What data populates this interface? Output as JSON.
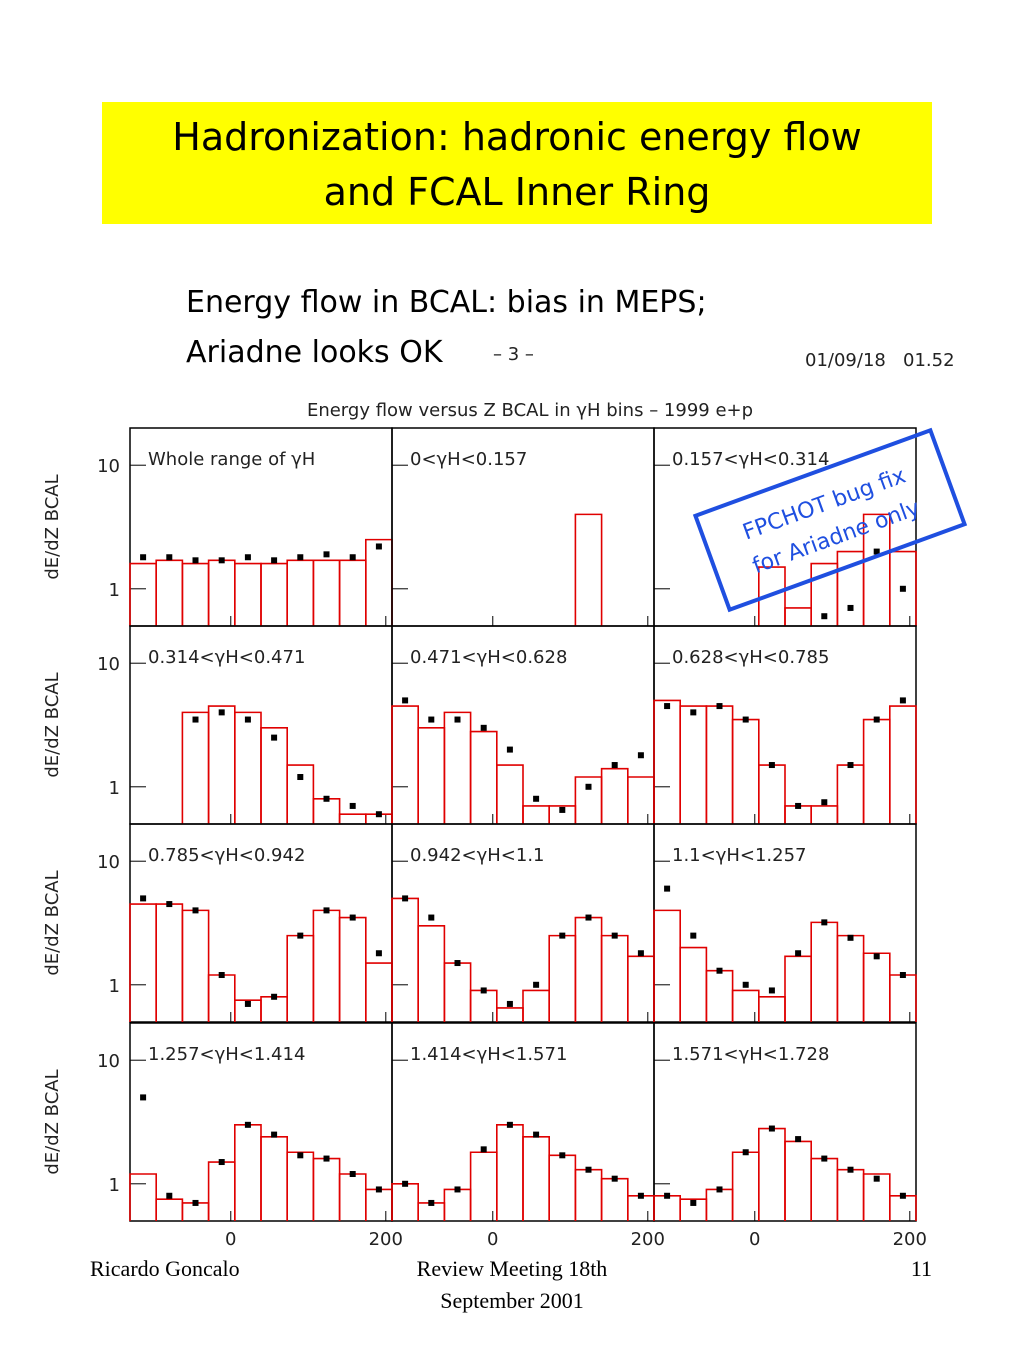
{
  "slide": {
    "title_lines": [
      "Hadronization: hadronic energy flow",
      "and FCAL Inner Ring"
    ],
    "subtitle_lines": [
      "Energy flow in BCAL: bias in MEPS;",
      "Ariadne looks OK"
    ],
    "page_stamp": "– 3 –",
    "date_stamp": "01/09/18   01.52",
    "annotation_lines": [
      "FPCHOT bug fix",
      "for Ariadne only"
    ],
    "footer_left": "Ricardo Goncalo",
    "footer_center_lines": [
      "Review Meeting 18th",
      "September 2001"
    ],
    "footer_right": "11"
  },
  "chart_data": {
    "type": "histogram",
    "title": "Energy flow versus Z BCAL in γH bins – 1999 e+p",
    "ylabel": "dE/dZ BCAL",
    "log_y": true,
    "mc_color": "#e00000",
    "data_color": "#000000",
    "xlim": [
      -130,
      208
    ],
    "ylim": [
      0.5,
      20
    ],
    "xticks": [
      0,
      200
    ],
    "yticks": [
      1,
      10
    ],
    "bins": [
      -130,
      -96.2,
      -62.4,
      -28.6,
      5.2,
      39,
      72.8,
      106.6,
      140.4,
      174.2,
      208
    ],
    "panels": [
      {
        "label": "Whole range of γH",
        "mc_values": [
          1.6,
          1.7,
          1.6,
          1.7,
          1.6,
          1.6,
          1.7,
          1.7,
          1.7,
          2.5
        ],
        "data_values": [
          1.8,
          1.8,
          1.7,
          1.7,
          1.8,
          1.7,
          1.8,
          1.9,
          1.8,
          2.2
        ]
      },
      {
        "label": "0<γH<0.157",
        "mc_values": [
          0,
          0,
          0,
          0,
          0,
          0,
          0,
          4,
          0,
          0
        ],
        "data_values": [
          null,
          null,
          null,
          null,
          null,
          null,
          null,
          null,
          null,
          null
        ]
      },
      {
        "label": "0.157<γH<0.314",
        "mc_values": [
          0,
          0,
          0,
          0,
          1.5,
          0.7,
          1.6,
          2,
          4,
          2
        ],
        "data_values": [
          null,
          null,
          null,
          null,
          null,
          null,
          0.6,
          0.7,
          2,
          1
        ]
      },
      {
        "label": "0.314<γH<0.471",
        "mc_values": [
          0,
          0,
          4,
          4.5,
          4,
          3,
          1.5,
          0.8,
          0.6,
          0.6
        ],
        "data_values": [
          null,
          null,
          3.5,
          4,
          3.5,
          2.5,
          1.2,
          0.8,
          0.7,
          0.6
        ]
      },
      {
        "label": "0.471<γH<0.628",
        "mc_values": [
          4.5,
          3,
          4,
          2.8,
          1.5,
          0.7,
          0.7,
          1.2,
          1.4,
          1.2
        ],
        "data_values": [
          5,
          3.5,
          3.5,
          3,
          2,
          0.8,
          0.65,
          1,
          1.5,
          1.8
        ]
      },
      {
        "label": "0.628<γH<0.785",
        "mc_values": [
          5,
          4.5,
          4.5,
          3.5,
          1.5,
          0.7,
          0.7,
          1.5,
          3.5,
          4.5
        ],
        "data_values": [
          4.5,
          4,
          4.5,
          3.5,
          1.5,
          0.7,
          0.75,
          1.5,
          3.5,
          5
        ]
      },
      {
        "label": "0.785<γH<0.942",
        "mc_values": [
          4.5,
          4.5,
          4,
          1.2,
          0.75,
          0.8,
          2.5,
          4,
          3.5,
          1.5
        ],
        "data_values": [
          5,
          4.5,
          4,
          1.2,
          0.7,
          0.8,
          2.5,
          4,
          3.5,
          1.8
        ]
      },
      {
        "label": "0.942<γH<1.1",
        "mc_values": [
          5,
          3,
          1.5,
          0.9,
          0.65,
          0.9,
          2.5,
          3.5,
          2.5,
          1.7
        ],
        "data_values": [
          5,
          3.5,
          1.5,
          0.9,
          0.7,
          1,
          2.5,
          3.5,
          2.5,
          1.8
        ]
      },
      {
        "label": "1.1<γH<1.257",
        "mc_values": [
          4,
          2,
          1.3,
          0.9,
          0.8,
          1.7,
          3.2,
          2.5,
          1.8,
          1.2
        ],
        "data_values": [
          6,
          2.5,
          1.3,
          1,
          0.9,
          1.8,
          3.2,
          2.4,
          1.7,
          1.2
        ]
      },
      {
        "label": "1.257<γH<1.414",
        "mc_values": [
          1.2,
          0.75,
          0.7,
          1.5,
          3,
          2.4,
          1.8,
          1.6,
          1.2,
          0.9
        ],
        "data_values": [
          5,
          0.8,
          0.7,
          1.5,
          3,
          2.5,
          1.7,
          1.6,
          1.2,
          0.9
        ]
      },
      {
        "label": "1.414<γH<1.571",
        "mc_values": [
          1,
          0.7,
          0.9,
          1.8,
          3,
          2.4,
          1.7,
          1.3,
          1.1,
          0.8
        ],
        "data_values": [
          1,
          0.7,
          0.9,
          1.9,
          3,
          2.5,
          1.7,
          1.3,
          1.1,
          0.8
        ]
      },
      {
        "label": "1.571<γH<1.728",
        "mc_values": [
          0.8,
          0.75,
          0.9,
          1.8,
          2.8,
          2.2,
          1.6,
          1.3,
          1.2,
          0.8
        ],
        "data_values": [
          0.8,
          0.7,
          0.9,
          1.8,
          2.8,
          2.3,
          1.6,
          1.3,
          1.1,
          0.8
        ]
      }
    ]
  }
}
